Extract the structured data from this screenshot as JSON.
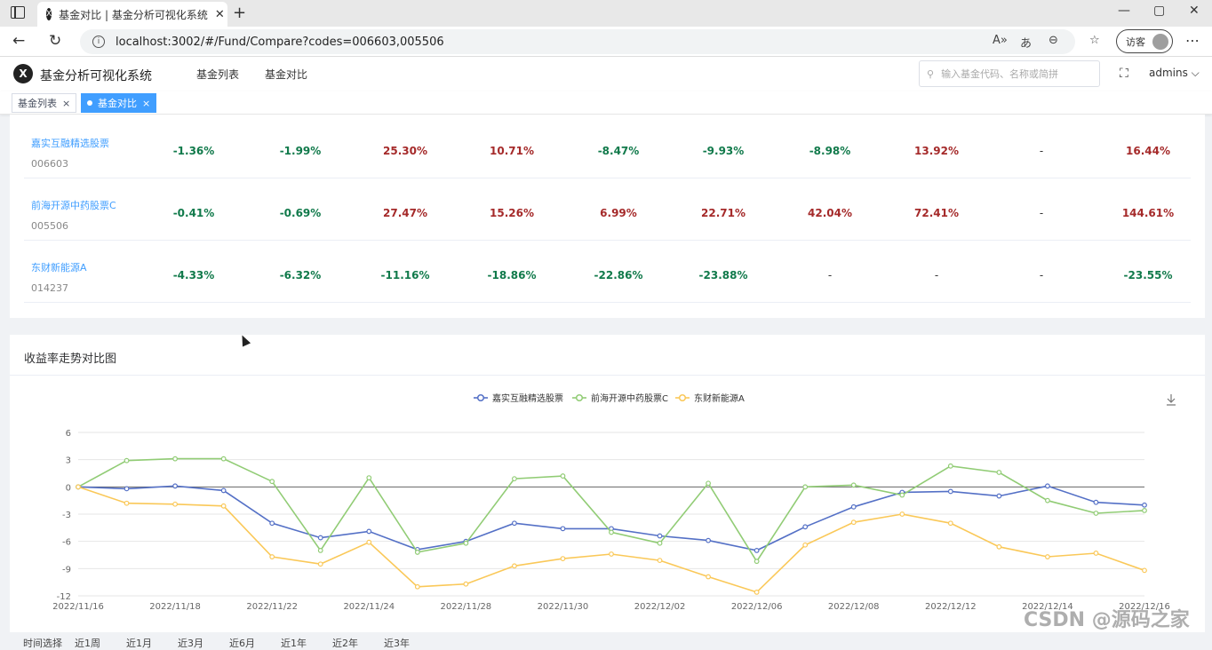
{
  "browser": {
    "tab_title": "基金对比 | 基金分析可视化系统",
    "tab_close": "✕",
    "new_tab": "+",
    "url": "localhost:3002/#/Fund/Compare?codes=006603,005506",
    "guest_label": "访客",
    "icons": [
      "sidebar-icon",
      "back-icon",
      "reload-icon",
      "info-icon",
      "read-aloud-icon",
      "translate-icon",
      "zoom-icon",
      "favorites-icon",
      "more-icon",
      "minimize-icon",
      "maximize-icon",
      "close-icon"
    ]
  },
  "app": {
    "name": "基金分析可视化系统",
    "logo": "X",
    "menu": [
      "基金列表",
      "基金对比"
    ],
    "search_placeholder": "输入基金代码、名称或简拼",
    "user": "admins",
    "tags": [
      {
        "label": "基金列表",
        "active": false
      },
      {
        "label": "基金对比",
        "active": true
      }
    ]
  },
  "table": {
    "rows": [
      {
        "name": "嘉实互融精选股票",
        "code": "006603",
        "values": [
          "-1.36%",
          "-1.99%",
          "25.30%",
          "10.71%",
          "-8.47%",
          "-9.93%",
          "-8.98%",
          "13.92%",
          "-",
          "16.44%"
        ]
      },
      {
        "name": "前海开源中药股票C",
        "code": "005506",
        "values": [
          "-0.41%",
          "-0.69%",
          "27.47%",
          "15.26%",
          "6.99%",
          "22.71%",
          "42.04%",
          "72.41%",
          "-",
          "144.61%"
        ]
      },
      {
        "name": "东财新能源A",
        "code": "014237",
        "values": [
          "-4.33%",
          "-6.32%",
          "-11.16%",
          "-18.86%",
          "-22.86%",
          "-23.88%",
          "-",
          "-",
          "-",
          "-23.55%"
        ]
      }
    ]
  },
  "chart_title": "收益率走势对比图",
  "chart_data": {
    "type": "line",
    "x": [
      "2022/11/16",
      "2022/11/17",
      "2022/11/18",
      "2022/11/21",
      "2022/11/22",
      "2022/11/23",
      "2022/11/24",
      "2022/11/25",
      "2022/11/28",
      "2022/11/29",
      "2022/11/30",
      "2022/12/01",
      "2022/12/02",
      "2022/12/05",
      "2022/12/06",
      "2022/12/07",
      "2022/12/08",
      "2022/12/09",
      "2022/12/12",
      "2022/12/13",
      "2022/12/14",
      "2022/12/15",
      "2022/12/16"
    ],
    "xticks": [
      "2022/11/16",
      "2022/11/18",
      "2022/11/22",
      "2022/11/24",
      "2022/11/28",
      "2022/11/30",
      "2022/12/02",
      "2022/12/06",
      "2022/12/08",
      "2022/12/12",
      "2022/12/14",
      "2022/12/16"
    ],
    "series": [
      {
        "name": "嘉实互融精选股票",
        "color": "#5470c6",
        "values": [
          0,
          -0.2,
          0.1,
          -0.4,
          -4.0,
          -5.6,
          -4.9,
          -6.9,
          -6.0,
          -4.0,
          -4.6,
          -4.6,
          -5.4,
          -5.9,
          -7.0,
          -4.4,
          -2.2,
          -0.6,
          -0.5,
          -1.0,
          0.1,
          -1.7,
          -2.0
        ]
      },
      {
        "name": "前海开源中药股票C",
        "color": "#91cc75",
        "values": [
          0,
          2.9,
          3.1,
          3.1,
          0.6,
          -7.0,
          1.0,
          -7.2,
          -6.2,
          0.9,
          1.2,
          -5.0,
          -6.2,
          0.4,
          -8.2,
          0.0,
          0.2,
          -0.9,
          2.3,
          1.6,
          -1.5,
          -2.9,
          -2.6
        ]
      },
      {
        "name": "东财新能源A",
        "color": "#fac858",
        "values": [
          0,
          -1.8,
          -1.9,
          -2.1,
          -7.7,
          -8.5,
          -6.1,
          -11.0,
          -10.7,
          -8.7,
          -7.9,
          -7.4,
          -8.1,
          -9.9,
          -11.6,
          -6.4,
          -3.9,
          -3.0,
          -4.0,
          -6.6,
          -7.7,
          -7.3,
          -9.2
        ]
      }
    ],
    "ylim": [
      -12,
      6
    ],
    "yticks": [
      6,
      3,
      0,
      -3,
      -6,
      -9,
      -12
    ],
    "legend": "top-center",
    "grid": true
  },
  "bottom_tabs": [
    "时间选择",
    "近1周",
    "近1月",
    "近3月",
    "近6月",
    "近1年",
    "近2年",
    "近3年"
  ],
  "watermark": "CSDN @源码之家"
}
